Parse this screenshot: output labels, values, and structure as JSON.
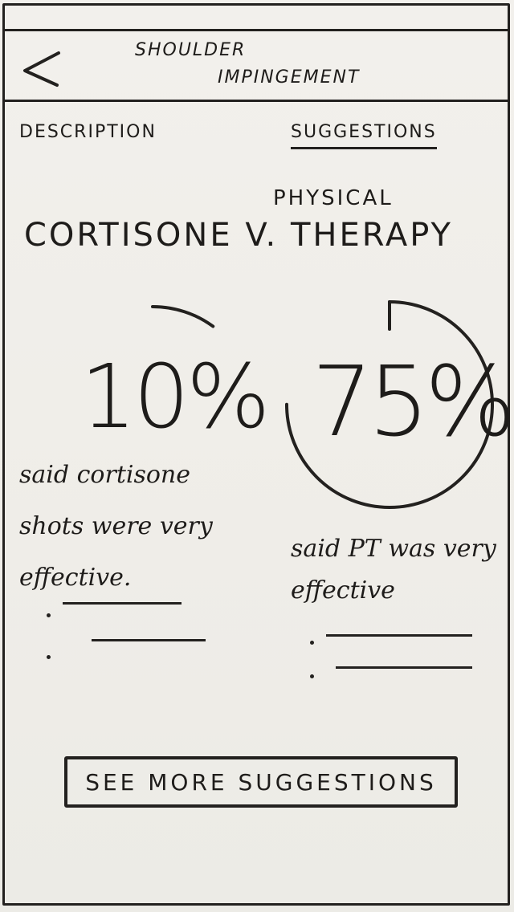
{
  "header": {
    "title_line1": "Shoulder",
    "title_line2": "Impingement",
    "back_icon": "chevron-left-icon"
  },
  "tabs": [
    {
      "label": "Description",
      "active": false
    },
    {
      "label": "Suggestions",
      "active": true
    }
  ],
  "comparison": {
    "left_title": "Cortisone v.",
    "right_title_top": "Physical",
    "right_title_bottom": "Therapy"
  },
  "stats": [
    {
      "percent_label": "10%",
      "value": 10,
      "caption": "said cortisone shots were very effective."
    },
    {
      "percent_label": "75%",
      "value": 75,
      "caption": "said PT was very effective"
    }
  ],
  "more_button": {
    "label": "See more suggestions"
  }
}
